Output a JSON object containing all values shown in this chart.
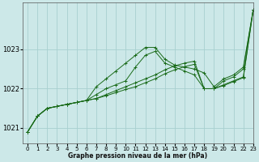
{
  "title": "Graphe pression niveau de la mer (hPa)",
  "bg_color": "#cce8e8",
  "grid_color": "#a8d0d0",
  "line_color": "#1a6b1a",
  "xlim": [
    -0.5,
    23
  ],
  "ylim": [
    1020.6,
    1024.2
  ],
  "yticks": [
    1021,
    1022,
    1023
  ],
  "xticks": [
    0,
    1,
    2,
    3,
    4,
    5,
    6,
    7,
    8,
    9,
    10,
    11,
    12,
    13,
    14,
    15,
    16,
    17,
    18,
    19,
    20,
    21,
    22,
    23
  ],
  "series": [
    [
      1020.9,
      1021.3,
      1021.5,
      1021.55,
      1021.6,
      1021.65,
      1021.7,
      1022.05,
      1022.25,
      1022.45,
      1022.65,
      1022.85,
      1023.05,
      1023.05,
      1022.75,
      1022.6,
      1022.55,
      1022.5,
      1022.4,
      1022.05,
      1022.25,
      1022.35,
      1022.55,
      1024.0
    ],
    [
      1020.9,
      1021.3,
      1021.5,
      1021.55,
      1021.6,
      1021.65,
      1021.7,
      1021.85,
      1022.0,
      1022.1,
      1022.2,
      1022.55,
      1022.85,
      1022.95,
      1022.65,
      1022.55,
      1022.45,
      1022.35,
      1022.0,
      1022.0,
      1022.2,
      1022.3,
      1022.5,
      1024.0
    ],
    [
      1020.9,
      1021.3,
      1021.5,
      1021.55,
      1021.6,
      1021.65,
      1021.7,
      1021.75,
      1021.85,
      1021.95,
      1022.05,
      1022.15,
      1022.25,
      1022.35,
      1022.48,
      1022.58,
      1022.65,
      1022.7,
      1022.0,
      1022.0,
      1022.1,
      1022.2,
      1022.3,
      1024.0
    ],
    [
      1020.9,
      1021.3,
      1021.5,
      1021.55,
      1021.6,
      1021.65,
      1021.7,
      1021.75,
      1021.82,
      1021.9,
      1021.98,
      1022.05,
      1022.15,
      1022.25,
      1022.38,
      1022.48,
      1022.56,
      1022.62,
      1022.0,
      1022.0,
      1022.08,
      1022.18,
      1022.28,
      1024.0
    ]
  ]
}
